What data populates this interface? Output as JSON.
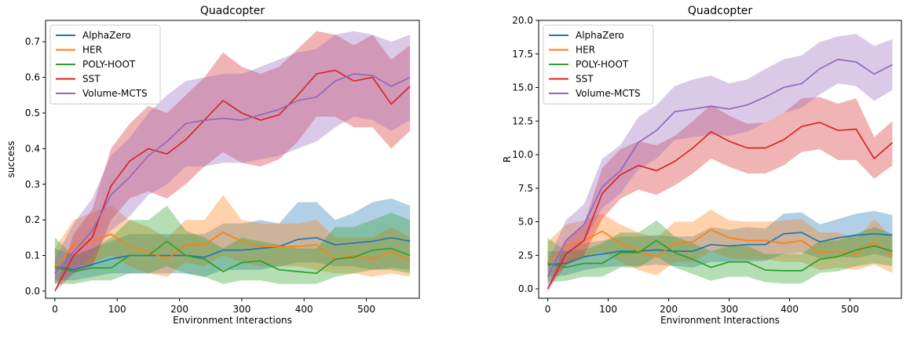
{
  "chart_data": [
    {
      "type": "line",
      "title": "Quadcopter",
      "xlabel": "Environment Interactions",
      "ylabel": "success",
      "xlim": [
        -15,
        585
      ],
      "ylim": [
        -0.02,
        0.76
      ],
      "xticks": [
        0,
        100,
        200,
        300,
        400,
        500
      ],
      "xtick_labels": [
        "0",
        "100",
        "200",
        "300",
        "400",
        "500"
      ],
      "yticks": [
        0.0,
        0.1,
        0.2,
        0.3,
        0.4,
        0.5,
        0.6,
        0.7
      ],
      "ytick_labels": [
        "0.0",
        "0.1",
        "0.2",
        "0.3",
        "0.4",
        "0.5",
        "0.6",
        "0.7"
      ],
      "legend_position": "top-left",
      "grid": false,
      "x": [
        0,
        30,
        60,
        90,
        120,
        150,
        180,
        210,
        240,
        270,
        300,
        330,
        360,
        390,
        420,
        450,
        480,
        510,
        540,
        570
      ],
      "series": [
        {
          "name": "AlphaZero",
          "color": "#1f77b4",
          "values": [
            0.07,
            0.06,
            0.075,
            0.09,
            0.1,
            0.1,
            0.1,
            0.1,
            0.095,
            0.115,
            0.115,
            0.12,
            0.125,
            0.145,
            0.15,
            0.13,
            0.135,
            0.14,
            0.15,
            0.14
          ],
          "lower": [
            0.03,
            0.03,
            0.04,
            0.05,
            0.05,
            0.05,
            0.05,
            0.05,
            0.04,
            0.06,
            0.06,
            0.06,
            0.07,
            0.08,
            0.08,
            0.07,
            0.07,
            0.06,
            0.065,
            0.06
          ],
          "upper": [
            0.12,
            0.1,
            0.12,
            0.14,
            0.16,
            0.16,
            0.16,
            0.16,
            0.16,
            0.19,
            0.19,
            0.2,
            0.19,
            0.25,
            0.25,
            0.2,
            0.22,
            0.25,
            0.26,
            0.24
          ]
        },
        {
          "name": "HER",
          "color": "#ff7f0e",
          "values": [
            0.065,
            0.13,
            0.14,
            0.16,
            0.125,
            0.11,
            0.09,
            0.13,
            0.13,
            0.165,
            0.14,
            0.125,
            0.125,
            0.125,
            0.13,
            0.09,
            0.1,
            0.09,
            0.11,
            0.085
          ],
          "lower": [
            0.02,
            0.07,
            0.08,
            0.1,
            0.07,
            0.05,
            0.04,
            0.08,
            0.07,
            0.1,
            0.08,
            0.07,
            0.07,
            0.07,
            0.06,
            0.05,
            0.05,
            0.04,
            0.05,
            0.04
          ],
          "upper": [
            0.12,
            0.2,
            0.22,
            0.24,
            0.2,
            0.18,
            0.15,
            0.2,
            0.2,
            0.27,
            0.2,
            0.19,
            0.19,
            0.19,
            0.2,
            0.15,
            0.15,
            0.15,
            0.18,
            0.15
          ]
        },
        {
          "name": "POLY-HOOT",
          "color": "#2ca02c",
          "values": [
            0.065,
            0.055,
            0.065,
            0.065,
            0.1,
            0.1,
            0.14,
            0.1,
            0.09,
            0.055,
            0.08,
            0.085,
            0.06,
            0.055,
            0.05,
            0.09,
            0.095,
            0.115,
            0.12,
            0.1
          ],
          "lower": [
            0.02,
            0.02,
            0.03,
            0.03,
            0.05,
            0.05,
            0.07,
            0.05,
            0.04,
            0.02,
            0.03,
            0.03,
            0.02,
            0.02,
            0.02,
            0.04,
            0.05,
            0.06,
            0.06,
            0.05
          ],
          "upper": [
            0.15,
            0.1,
            0.12,
            0.15,
            0.2,
            0.2,
            0.24,
            0.17,
            0.15,
            0.12,
            0.15,
            0.14,
            0.13,
            0.12,
            0.12,
            0.18,
            0.18,
            0.2,
            0.22,
            0.2
          ]
        },
        {
          "name": "SST",
          "color": "#d62728",
          "values": [
            0.0,
            0.1,
            0.15,
            0.295,
            0.365,
            0.4,
            0.385,
            0.425,
            0.48,
            0.535,
            0.5,
            0.48,
            0.495,
            0.55,
            0.61,
            0.62,
            0.59,
            0.6,
            0.525,
            0.575
          ],
          "lower": [
            0.0,
            0.05,
            0.07,
            0.2,
            0.26,
            0.28,
            0.26,
            0.3,
            0.35,
            0.39,
            0.36,
            0.35,
            0.37,
            0.42,
            0.49,
            0.49,
            0.46,
            0.46,
            0.4,
            0.45
          ],
          "upper": [
            0.0,
            0.16,
            0.23,
            0.4,
            0.47,
            0.52,
            0.5,
            0.55,
            0.6,
            0.67,
            0.63,
            0.61,
            0.63,
            0.68,
            0.73,
            0.72,
            0.69,
            0.72,
            0.65,
            0.69
          ]
        },
        {
          "name": "Volume-MCTS",
          "color": "#9467bd",
          "values": [
            0.05,
            0.11,
            0.17,
            0.27,
            0.32,
            0.38,
            0.42,
            0.47,
            0.48,
            0.485,
            0.48,
            0.495,
            0.51,
            0.535,
            0.545,
            0.59,
            0.61,
            0.605,
            0.575,
            0.6
          ],
          "lower": [
            0.02,
            0.05,
            0.1,
            0.17,
            0.21,
            0.27,
            0.3,
            0.35,
            0.35,
            0.36,
            0.36,
            0.37,
            0.38,
            0.4,
            0.42,
            0.46,
            0.49,
            0.48,
            0.45,
            0.48
          ],
          "upper": [
            0.09,
            0.19,
            0.26,
            0.38,
            0.43,
            0.5,
            0.55,
            0.59,
            0.6,
            0.61,
            0.61,
            0.63,
            0.65,
            0.67,
            0.68,
            0.72,
            0.73,
            0.72,
            0.7,
            0.72
          ]
        }
      ]
    },
    {
      "type": "line",
      "title": "Quadcopter",
      "xlabel": "Environment Interactions",
      "ylabel": "R",
      "xlim": [
        -15,
        585
      ],
      "ylim": [
        -0.7,
        20.0
      ],
      "xticks": [
        0,
        100,
        200,
        300,
        400,
        500
      ],
      "xtick_labels": [
        "0",
        "100",
        "200",
        "300",
        "400",
        "500"
      ],
      "yticks": [
        0.0,
        2.5,
        5.0,
        7.5,
        10.0,
        12.5,
        15.0,
        17.5,
        20.0
      ],
      "ytick_labels": [
        "0.0",
        "2.5",
        "5.0",
        "7.5",
        "10.0",
        "12.5",
        "15.0",
        "17.5",
        "20.0"
      ],
      "legend_position": "top-left",
      "grid": false,
      "x": [
        0,
        30,
        60,
        90,
        120,
        150,
        180,
        210,
        240,
        270,
        300,
        330,
        360,
        390,
        420,
        450,
        480,
        510,
        540,
        570
      ],
      "series": [
        {
          "name": "AlphaZero",
          "color": "#1f77b4",
          "values": [
            1.8,
            1.9,
            2.4,
            2.6,
            2.8,
            2.8,
            2.9,
            2.8,
            2.8,
            3.3,
            3.2,
            3.3,
            3.3,
            4.1,
            4.2,
            3.5,
            3.8,
            4.0,
            4.1,
            4.0
          ],
          "lower": [
            0.9,
            1.0,
            1.4,
            1.6,
            1.7,
            1.7,
            1.8,
            1.7,
            1.6,
            2.0,
            2.0,
            2.0,
            2.1,
            2.6,
            2.7,
            2.3,
            2.4,
            2.3,
            2.6,
            2.3
          ],
          "upper": [
            2.8,
            2.8,
            3.4,
            3.6,
            3.9,
            3.9,
            4.0,
            3.9,
            3.9,
            4.6,
            4.4,
            4.6,
            4.5,
            5.6,
            5.7,
            4.8,
            5.2,
            5.6,
            5.8,
            5.5
          ]
        },
        {
          "name": "HER",
          "color": "#ff7f0e",
          "values": [
            1.9,
            3.2,
            3.6,
            4.3,
            3.4,
            2.8,
            2.4,
            3.4,
            3.5,
            4.4,
            3.8,
            3.6,
            3.6,
            3.4,
            3.6,
            2.7,
            2.8,
            2.6,
            3.5,
            2.5
          ],
          "lower": [
            0.4,
            1.8,
            2.2,
            2.8,
            2.0,
            1.4,
            1.0,
            2.0,
            2.0,
            2.8,
            2.3,
            2.2,
            2.2,
            2.0,
            2.0,
            1.4,
            1.6,
            1.4,
            1.8,
            1.2
          ],
          "upper": [
            3.5,
            4.8,
            5.1,
            5.6,
            4.8,
            4.2,
            3.8,
            5.0,
            5.0,
            5.9,
            5.1,
            5.0,
            5.0,
            5.1,
            5.2,
            4.2,
            4.2,
            3.8,
            5.2,
            3.8
          ]
        },
        {
          "name": "POLY-HOOT",
          "color": "#2ca02c",
          "values": [
            1.9,
            1.6,
            1.9,
            1.9,
            2.7,
            2.7,
            3.6,
            2.7,
            2.2,
            1.6,
            2.0,
            2.0,
            1.4,
            1.35,
            1.35,
            2.2,
            2.4,
            2.9,
            3.2,
            2.8
          ],
          "lower": [
            0.5,
            0.6,
            0.9,
            0.9,
            1.6,
            1.6,
            2.4,
            1.6,
            1.1,
            0.6,
            0.9,
            0.9,
            0.5,
            0.4,
            0.4,
            1.2,
            1.3,
            1.7,
            1.9,
            1.7
          ],
          "upper": [
            3.8,
            2.8,
            2.9,
            3.4,
            4.2,
            4.2,
            5.1,
            3.9,
            3.4,
            2.8,
            3.2,
            3.2,
            2.6,
            2.6,
            2.6,
            3.6,
            3.6,
            4.1,
            4.6,
            4.1
          ]
        },
        {
          "name": "SST",
          "color": "#d62728",
          "values": [
            0.0,
            2.6,
            3.6,
            7.1,
            8.5,
            9.2,
            8.8,
            9.5,
            10.5,
            11.7,
            11.0,
            10.5,
            10.5,
            11.1,
            12.1,
            12.4,
            11.8,
            11.9,
            9.7,
            10.9
          ],
          "lower": [
            0.0,
            1.7,
            2.5,
            5.2,
            6.7,
            7.4,
            7.0,
            7.7,
            8.6,
            9.7,
            9.1,
            8.6,
            8.6,
            9.2,
            10.2,
            10.4,
            9.6,
            9.6,
            8.2,
            9.2
          ],
          "upper": [
            0.0,
            3.6,
            4.8,
            9.0,
            10.4,
            11.0,
            10.7,
            11.4,
            12.5,
            13.7,
            12.9,
            12.3,
            12.4,
            13.1,
            14.2,
            14.3,
            13.8,
            14.2,
            11.3,
            12.5
          ]
        },
        {
          "name": "Volume-MCTS",
          "color": "#9467bd",
          "values": [
            0.9,
            3.6,
            4.8,
            7.6,
            8.8,
            10.9,
            11.8,
            13.2,
            13.4,
            13.6,
            13.4,
            13.7,
            14.3,
            15.0,
            15.3,
            16.4,
            17.1,
            16.9,
            16.0,
            16.7
          ],
          "lower": [
            -0.3,
            2.4,
            3.5,
            6.0,
            7.1,
            8.9,
            9.7,
            11.1,
            11.3,
            11.5,
            11.4,
            11.7,
            12.4,
            13.1,
            13.5,
            14.5,
            15.3,
            15.1,
            14.0,
            14.8
          ],
          "upper": [
            2.0,
            5.1,
            6.3,
            9.7,
            10.7,
            12.8,
            13.7,
            15.1,
            15.6,
            15.9,
            15.3,
            15.6,
            16.4,
            17.1,
            17.4,
            18.4,
            18.8,
            19.0,
            18.1,
            18.6
          ]
        }
      ]
    }
  ]
}
